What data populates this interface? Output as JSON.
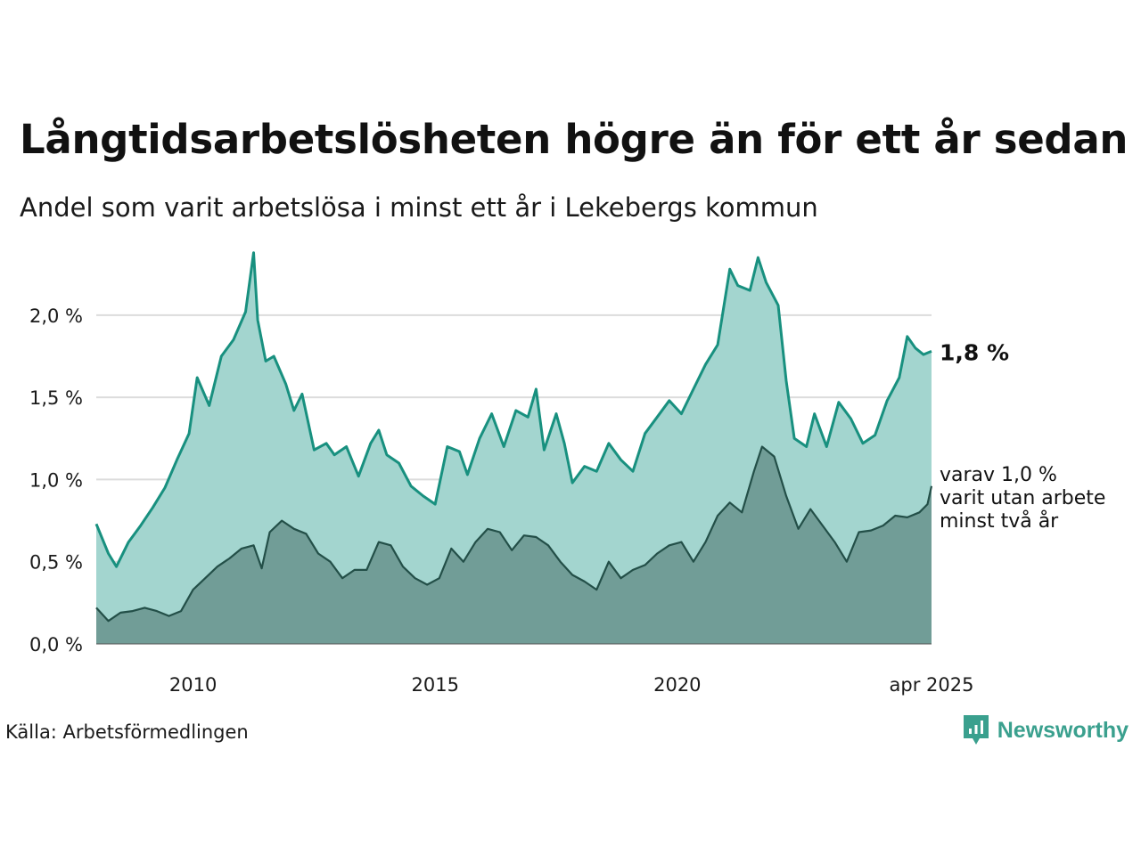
{
  "title": "Långtidsarbetslösheten högre än för ett år sedan",
  "subtitle": "Andel som varit arbetslösa i minst ett år i Lekebergs kommun",
  "source": "Källa: Arbetsförmedlingen",
  "brand": "Newsworthy",
  "chart_data": {
    "type": "area",
    "x_start": "2008-01",
    "x_end": "2025-04",
    "x_ticks": [
      {
        "x": "2010-01",
        "label": "2010"
      },
      {
        "x": "2015-01",
        "label": "2015"
      },
      {
        "x": "2020-01",
        "label": "2020"
      },
      {
        "x": "2025-04",
        "label": "apr 2025"
      }
    ],
    "y_ticks": [
      {
        "y": 0.0,
        "label": "0,0 %"
      },
      {
        "y": 0.5,
        "label": "0,5 %"
      },
      {
        "y": 1.0,
        "label": "1,0 %"
      },
      {
        "y": 1.5,
        "label": "1,5 %"
      },
      {
        "y": 2.0,
        "label": "2,0 %"
      }
    ],
    "ylim": [
      0,
      2.4
    ],
    "grid": true,
    "end_labels": {
      "main": "1,8 %",
      "sub": [
        "varav 1,0 %",
        "varit utan arbete",
        "minst två år"
      ]
    },
    "series": [
      {
        "color": "#18907f",
        "fill": "#a3d5cf",
        "points": [
          [
            "2008-01",
            0.73
          ],
          [
            "2008-04",
            0.55
          ],
          [
            "2008-06",
            0.47
          ],
          [
            "2008-09",
            0.62
          ],
          [
            "2008-12",
            0.72
          ],
          [
            "2009-03",
            0.83
          ],
          [
            "2009-06",
            0.95
          ],
          [
            "2009-09",
            1.12
          ],
          [
            "2009-12",
            1.28
          ],
          [
            "2010-02",
            1.62
          ],
          [
            "2010-05",
            1.45
          ],
          [
            "2010-08",
            1.75
          ],
          [
            "2010-11",
            1.85
          ],
          [
            "2011-02",
            2.02
          ],
          [
            "2011-04",
            2.38
          ],
          [
            "2011-05",
            1.97
          ],
          [
            "2011-07",
            1.72
          ],
          [
            "2011-09",
            1.75
          ],
          [
            "2011-12",
            1.58
          ],
          [
            "2012-02",
            1.42
          ],
          [
            "2012-04",
            1.52
          ],
          [
            "2012-07",
            1.18
          ],
          [
            "2012-10",
            1.22
          ],
          [
            "2012-12",
            1.15
          ],
          [
            "2013-03",
            1.2
          ],
          [
            "2013-06",
            1.02
          ],
          [
            "2013-09",
            1.22
          ],
          [
            "2013-11",
            1.3
          ],
          [
            "2014-01",
            1.15
          ],
          [
            "2014-04",
            1.1
          ],
          [
            "2014-07",
            0.96
          ],
          [
            "2014-10",
            0.9
          ],
          [
            "2015-01",
            0.85
          ],
          [
            "2015-04",
            1.2
          ],
          [
            "2015-07",
            1.17
          ],
          [
            "2015-09",
            1.03
          ],
          [
            "2015-12",
            1.25
          ],
          [
            "2016-03",
            1.4
          ],
          [
            "2016-06",
            1.2
          ],
          [
            "2016-09",
            1.42
          ],
          [
            "2016-12",
            1.38
          ],
          [
            "2017-02",
            1.55
          ],
          [
            "2017-04",
            1.18
          ],
          [
            "2017-07",
            1.4
          ],
          [
            "2017-09",
            1.22
          ],
          [
            "2017-11",
            0.98
          ],
          [
            "2018-02",
            1.08
          ],
          [
            "2018-05",
            1.05
          ],
          [
            "2018-08",
            1.22
          ],
          [
            "2018-11",
            1.12
          ],
          [
            "2019-02",
            1.05
          ],
          [
            "2019-05",
            1.28
          ],
          [
            "2019-08",
            1.38
          ],
          [
            "2019-11",
            1.48
          ],
          [
            "2020-02",
            1.4
          ],
          [
            "2020-05",
            1.55
          ],
          [
            "2020-08",
            1.7
          ],
          [
            "2020-11",
            1.82
          ],
          [
            "2021-02",
            2.28
          ],
          [
            "2021-04",
            2.18
          ],
          [
            "2021-07",
            2.15
          ],
          [
            "2021-09",
            2.35
          ],
          [
            "2021-11",
            2.2
          ],
          [
            "2022-02",
            2.06
          ],
          [
            "2022-04",
            1.6
          ],
          [
            "2022-06",
            1.25
          ],
          [
            "2022-09",
            1.2
          ],
          [
            "2022-11",
            1.4
          ],
          [
            "2023-02",
            1.2
          ],
          [
            "2023-05",
            1.47
          ],
          [
            "2023-08",
            1.37
          ],
          [
            "2023-11",
            1.22
          ],
          [
            "2024-02",
            1.27
          ],
          [
            "2024-05",
            1.48
          ],
          [
            "2024-08",
            1.62
          ],
          [
            "2024-10",
            1.87
          ],
          [
            "2024-12",
            1.8
          ],
          [
            "2025-02",
            1.76
          ],
          [
            "2025-04",
            1.78
          ]
        ]
      },
      {
        "color": "#234f48",
        "fill": "#719d97",
        "points": [
          [
            "2008-01",
            0.22
          ],
          [
            "2008-04",
            0.14
          ],
          [
            "2008-07",
            0.19
          ],
          [
            "2008-10",
            0.2
          ],
          [
            "2009-01",
            0.22
          ],
          [
            "2009-04",
            0.2
          ],
          [
            "2009-07",
            0.17
          ],
          [
            "2009-10",
            0.2
          ],
          [
            "2010-01",
            0.33
          ],
          [
            "2010-04",
            0.4
          ],
          [
            "2010-07",
            0.47
          ],
          [
            "2010-10",
            0.52
          ],
          [
            "2011-01",
            0.58
          ],
          [
            "2011-04",
            0.6
          ],
          [
            "2011-06",
            0.46
          ],
          [
            "2011-08",
            0.68
          ],
          [
            "2011-11",
            0.75
          ],
          [
            "2012-02",
            0.7
          ],
          [
            "2012-05",
            0.67
          ],
          [
            "2012-08",
            0.55
          ],
          [
            "2012-11",
            0.5
          ],
          [
            "2013-02",
            0.4
          ],
          [
            "2013-05",
            0.45
          ],
          [
            "2013-08",
            0.45
          ],
          [
            "2013-11",
            0.62
          ],
          [
            "2014-02",
            0.6
          ],
          [
            "2014-05",
            0.47
          ],
          [
            "2014-08",
            0.4
          ],
          [
            "2014-11",
            0.36
          ],
          [
            "2015-02",
            0.4
          ],
          [
            "2015-05",
            0.58
          ],
          [
            "2015-08",
            0.5
          ],
          [
            "2015-11",
            0.62
          ],
          [
            "2016-02",
            0.7
          ],
          [
            "2016-05",
            0.68
          ],
          [
            "2016-08",
            0.57
          ],
          [
            "2016-11",
            0.66
          ],
          [
            "2017-02",
            0.65
          ],
          [
            "2017-05",
            0.6
          ],
          [
            "2017-08",
            0.5
          ],
          [
            "2017-11",
            0.42
          ],
          [
            "2018-02",
            0.38
          ],
          [
            "2018-05",
            0.33
          ],
          [
            "2018-08",
            0.5
          ],
          [
            "2018-11",
            0.4
          ],
          [
            "2019-02",
            0.45
          ],
          [
            "2019-05",
            0.48
          ],
          [
            "2019-08",
            0.55
          ],
          [
            "2019-11",
            0.6
          ],
          [
            "2020-02",
            0.62
          ],
          [
            "2020-05",
            0.5
          ],
          [
            "2020-08",
            0.62
          ],
          [
            "2020-11",
            0.78
          ],
          [
            "2021-02",
            0.86
          ],
          [
            "2021-05",
            0.8
          ],
          [
            "2021-08",
            1.05
          ],
          [
            "2021-10",
            1.2
          ],
          [
            "2022-01",
            1.14
          ],
          [
            "2022-04",
            0.9
          ],
          [
            "2022-07",
            0.7
          ],
          [
            "2022-10",
            0.82
          ],
          [
            "2023-01",
            0.72
          ],
          [
            "2023-04",
            0.62
          ],
          [
            "2023-07",
            0.5
          ],
          [
            "2023-10",
            0.68
          ],
          [
            "2024-01",
            0.69
          ],
          [
            "2024-04",
            0.72
          ],
          [
            "2024-07",
            0.78
          ],
          [
            "2024-10",
            0.77
          ],
          [
            "2025-01",
            0.8
          ],
          [
            "2025-03",
            0.85
          ],
          [
            "2025-04",
            0.96
          ]
        ]
      }
    ]
  }
}
